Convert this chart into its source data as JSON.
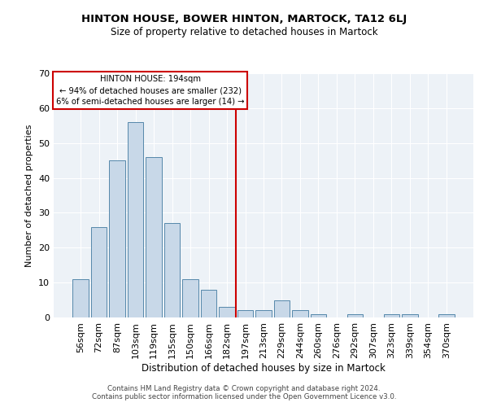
{
  "title": "HINTON HOUSE, BOWER HINTON, MARTOCK, TA12 6LJ",
  "subtitle": "Size of property relative to detached houses in Martock",
  "xlabel": "Distribution of detached houses by size in Martock",
  "ylabel": "Number of detached properties",
  "bar_labels": [
    "56sqm",
    "72sqm",
    "87sqm",
    "103sqm",
    "119sqm",
    "135sqm",
    "150sqm",
    "166sqm",
    "182sqm",
    "197sqm",
    "213sqm",
    "229sqm",
    "244sqm",
    "260sqm",
    "276sqm",
    "292sqm",
    "307sqm",
    "323sqm",
    "339sqm",
    "354sqm",
    "370sqm"
  ],
  "bar_values": [
    11,
    26,
    45,
    56,
    46,
    27,
    11,
    8,
    3,
    2,
    2,
    5,
    2,
    1,
    0,
    1,
    0,
    1,
    1,
    0,
    1
  ],
  "bar_color": "#c8d8e8",
  "bar_edgecolor": "#5588aa",
  "vline_color": "#cc0000",
  "ylim": [
    0,
    70
  ],
  "yticks": [
    0,
    10,
    20,
    30,
    40,
    50,
    60,
    70
  ],
  "annotation_text": "HINTON HOUSE: 194sqm\n← 94% of detached houses are smaller (232)\n6% of semi-detached houses are larger (14) →",
  "annotation_box_color": "#cc0000",
  "bg_color": "#edf2f7",
  "footer1": "Contains HM Land Registry data © Crown copyright and database right 2024.",
  "footer2": "Contains public sector information licensed under the Open Government Licence v3.0."
}
